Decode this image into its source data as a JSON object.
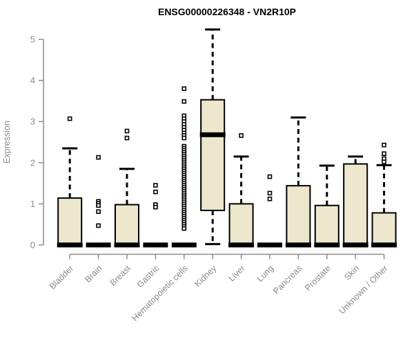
{
  "title": "ENSG00000226348 - VN2R10P",
  "colors": {
    "background": "#ffffff",
    "box_fill": "#ece7cd",
    "box_stroke": "#000000",
    "median": "#000000",
    "outlier_fill": "#ffffff",
    "axis": "#8a8a8a",
    "tick_label": "#8a8a8a",
    "title": "#000000"
  },
  "chart_data": {
    "type": "box",
    "title": "ENSG00000226348 - VN2R10P",
    "xlabel": "",
    "ylabel": "Expression",
    "ylim": [
      0,
      5
    ],
    "yticks": [
      0,
      1,
      2,
      3,
      4,
      5
    ],
    "grid": "off",
    "legend": "none",
    "categories": [
      "Bladder",
      "Brain",
      "Breast",
      "Gastric",
      "Hematopoietic cells",
      "Kidney",
      "Liver",
      "Lung",
      "Pancreas",
      "Prostate",
      "Skin",
      "Unknown / Other"
    ],
    "boxes": [
      {
        "name": "Bladder",
        "flat": false,
        "q1": 0,
        "median": 0,
        "q3": 1.14,
        "whisker_low": 0,
        "whisker_high": 2.35,
        "outliers": [
          3.07
        ]
      },
      {
        "name": "Brain",
        "flat": true,
        "q1": 0,
        "median": 0,
        "q3": 0,
        "whisker_low": 0,
        "whisker_high": 0,
        "outliers": [
          2.13,
          1.06,
          1.01,
          0.96,
          0.81,
          0.47
        ]
      },
      {
        "name": "Breast",
        "flat": false,
        "q1": 0,
        "median": 0,
        "q3": 0.98,
        "whisker_low": 0,
        "whisker_high": 1.85,
        "outliers": [
          2.77,
          2.6
        ]
      },
      {
        "name": "Gastric",
        "flat": true,
        "q1": 0,
        "median": 0,
        "q3": 0,
        "whisker_low": 0,
        "whisker_high": 0,
        "outliers": [
          1.45,
          1.29,
          0.98,
          0.92
        ]
      },
      {
        "name": "Hematopoietic cells",
        "flat": true,
        "q1": 0,
        "median": 0,
        "q3": 0,
        "whisker_low": 0,
        "whisker_high": 0,
        "outliers": [
          3.8,
          3.49,
          3.14,
          3.07,
          3.0,
          2.93,
          2.86,
          2.79,
          2.72,
          2.66,
          2.6,
          2.4,
          2.35,
          2.3,
          2.25,
          2.2,
          2.15,
          2.1,
          2.05,
          2.0,
          1.95,
          1.9,
          1.85,
          1.8,
          1.75,
          1.7,
          1.65,
          1.6,
          1.55,
          1.5,
          1.45,
          1.4,
          1.35,
          1.3,
          1.25,
          1.2,
          1.15,
          1.1,
          1.05,
          1.0,
          0.95,
          0.9,
          0.85,
          0.8,
          0.75,
          0.7,
          0.65,
          0.6,
          0.55,
          0.5,
          0.45,
          0.4
        ]
      },
      {
        "name": "Kidney",
        "flat": false,
        "q1": 0.84,
        "median": 2.68,
        "q3": 3.53,
        "whisker_low": 0.02,
        "whisker_high": 5.24,
        "outliers": []
      },
      {
        "name": "Liver",
        "flat": false,
        "q1": 0,
        "median": 0,
        "q3": 1.0,
        "whisker_low": 0,
        "whisker_high": 2.15,
        "outliers": [
          2.66
        ]
      },
      {
        "name": "Lung",
        "flat": true,
        "q1": 0,
        "median": 0,
        "q3": 0,
        "whisker_low": 0,
        "whisker_high": 0,
        "outliers": [
          1.66,
          1.26,
          1.12
        ]
      },
      {
        "name": "Pancreas",
        "flat": false,
        "q1": 0,
        "median": 0,
        "q3": 1.44,
        "whisker_low": 0,
        "whisker_high": 3.1,
        "outliers": []
      },
      {
        "name": "Prostate",
        "flat": false,
        "q1": 0,
        "median": 0,
        "q3": 0.96,
        "whisker_low": 0,
        "whisker_high": 1.93,
        "outliers": []
      },
      {
        "name": "Skin",
        "flat": false,
        "q1": 0,
        "median": 0,
        "q3": 1.97,
        "whisker_low": 0,
        "whisker_high": 2.15,
        "outliers": []
      },
      {
        "name": "Unknown / Other",
        "flat": false,
        "q1": 0,
        "median": 0,
        "q3": 0.78,
        "whisker_low": 0,
        "whisker_high": 1.94,
        "outliers": [
          2.43,
          2.22,
          2.1,
          2.02
        ]
      }
    ]
  }
}
